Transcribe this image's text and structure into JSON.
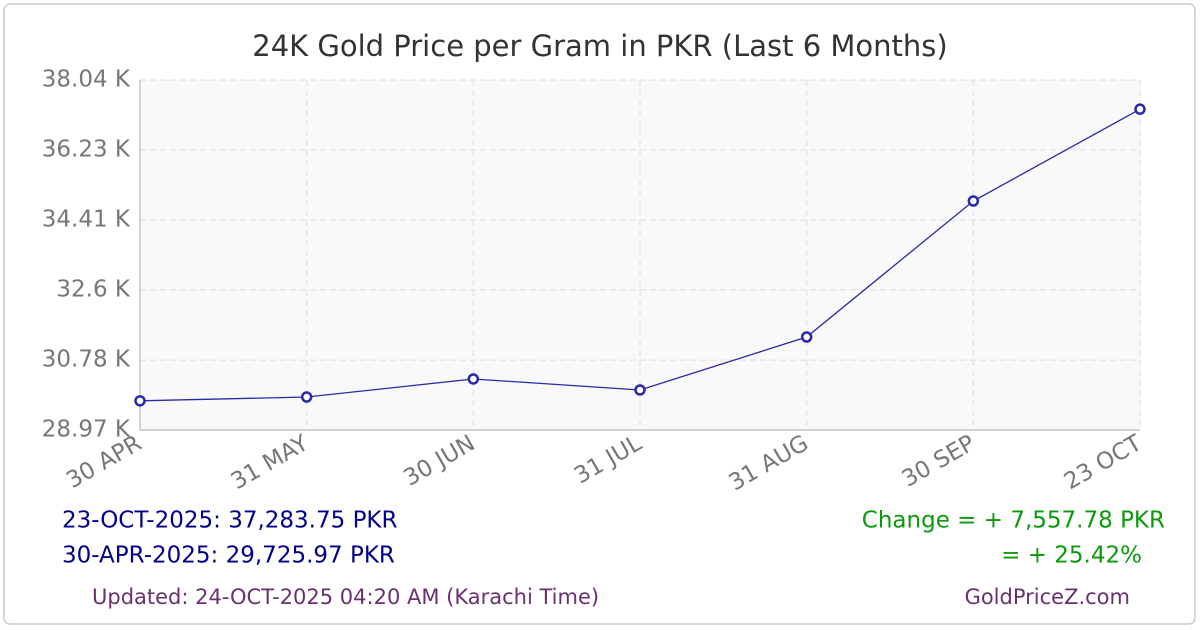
{
  "chart_data": {
    "type": "line",
    "title": "24K Gold Price per Gram in PKR (Last 6 Months)",
    "categories": [
      "30 APR",
      "31 MAY",
      "30 JUN",
      "31 JUL",
      "31 AUG",
      "30 SEP",
      "23 OCT"
    ],
    "values": [
      29725.97,
      29825,
      30292,
      30007,
      31380,
      34904,
      37283.75
    ],
    "color": "#2a2aa8",
    "ylim": [
      28970,
      38040
    ],
    "yticks": [
      {
        "value": 28970,
        "label": "28.97 K"
      },
      {
        "value": 30780,
        "label": "30.78 K"
      },
      {
        "value": 32600,
        "label": "32.6 K"
      },
      {
        "value": 34410,
        "label": "34.41 K"
      },
      {
        "value": 36230,
        "label": "36.23 K"
      },
      {
        "value": 38040,
        "label": "38.04 K"
      }
    ],
    "grid": true
  },
  "footer": {
    "latest": "23-OCT-2025: 37,283.75 PKR",
    "earliest": "30-APR-2025: 29,725.97 PKR",
    "change": "Change = + 7,557.78 PKR",
    "change_pct": "= + 25.42%",
    "updated": "Updated: 24-OCT-2025 04:20 AM (Karachi Time)",
    "site": "GoldPriceZ.com"
  }
}
